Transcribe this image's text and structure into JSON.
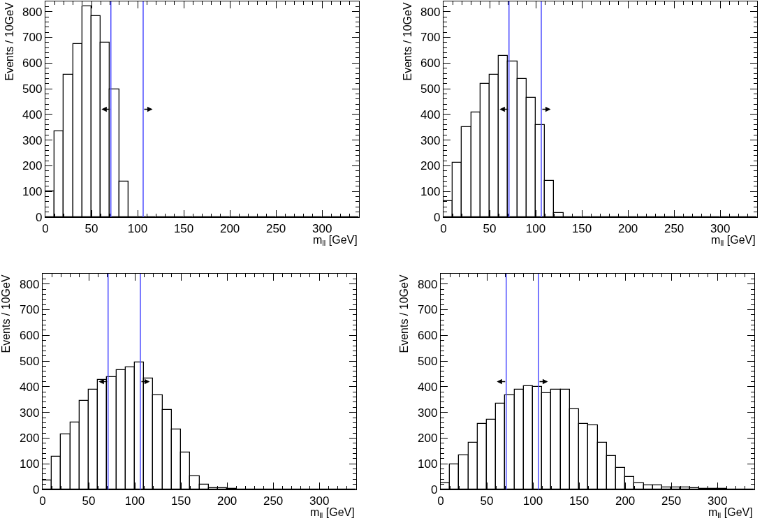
{
  "chart_data": [
    {
      "type": "histogram",
      "xlabel": "m$_{ll}$ [GeV]",
      "ylabel": "Events / 10GeV",
      "color": "#000000",
      "bins": [
        0,
        10,
        20,
        30,
        40,
        50,
        60,
        70,
        80,
        90,
        100,
        110,
        120,
        130,
        140,
        150,
        160,
        170,
        180,
        190,
        200,
        210,
        220,
        230,
        240,
        250,
        260,
        270,
        280,
        290,
        300,
        310,
        320,
        330,
        340
      ],
      "values": [
        100,
        335,
        555,
        675,
        820,
        783,
        680,
        497,
        140,
        0,
        0,
        0,
        0,
        0,
        0,
        0,
        0,
        0,
        0,
        0,
        0,
        0,
        0,
        0,
        0,
        0,
        0,
        0,
        0,
        0,
        0,
        0,
        0,
        0
      ],
      "xlim": [
        0,
        340
      ],
      "ylim": [
        0,
        840
      ],
      "xticks": [
        0,
        50,
        100,
        150,
        200,
        250,
        300
      ],
      "yticks": [
        0,
        100,
        200,
        300,
        400,
        500,
        600,
        700,
        800
      ],
      "ref_lines": [
        {
          "axis": "x",
          "value": 71,
          "color": "#4d4dff"
        },
        {
          "axis": "x",
          "value": 106,
          "color": "#4d4dff"
        }
      ]
    },
    {
      "type": "histogram",
      "xlabel": "m$_{ll}$ [GeV]",
      "ylabel": "Events / 10GeV",
      "color": "#000000",
      "bins": [
        0,
        10,
        20,
        30,
        40,
        50,
        60,
        70,
        80,
        90,
        100,
        110,
        120,
        130,
        140,
        150,
        160,
        170,
        180,
        190,
        200,
        210,
        220,
        230,
        240,
        250,
        260,
        270,
        280,
        290,
        300,
        310,
        320,
        330,
        340
      ],
      "values": [
        62,
        212,
        352,
        407,
        520,
        555,
        628,
        607,
        538,
        465,
        360,
        142,
        17,
        0,
        0,
        0,
        0,
        0,
        0,
        0,
        0,
        0,
        0,
        0,
        0,
        0,
        0,
        0,
        0,
        0,
        0,
        0,
        0,
        0
      ],
      "xlim": [
        0,
        340
      ],
      "ylim": [
        0,
        840
      ],
      "xticks": [
        0,
        50,
        100,
        150,
        200,
        250,
        300
      ],
      "yticks": [
        0,
        100,
        200,
        300,
        400,
        500,
        600,
        700,
        800
      ],
      "ref_lines": [
        {
          "axis": "x",
          "value": 71,
          "color": "#4d4dff"
        },
        {
          "axis": "x",
          "value": 106,
          "color": "#4d4dff"
        }
      ]
    },
    {
      "type": "histogram",
      "xlabel": "m$_{ll}$ [GeV]",
      "ylabel": "Events / 10GeV",
      "color": "#000000",
      "bins": [
        0,
        10,
        20,
        30,
        40,
        50,
        60,
        70,
        80,
        90,
        100,
        110,
        120,
        130,
        140,
        150,
        160,
        170,
        180,
        190,
        200,
        210,
        220,
        230,
        240,
        250,
        260,
        270,
        280,
        290,
        300,
        310,
        320,
        330,
        340
      ],
      "values": [
        36,
        128,
        214,
        262,
        345,
        390,
        428,
        438,
        464,
        476,
        495,
        432,
        368,
        310,
        235,
        145,
        51,
        20,
        6,
        6,
        3,
        1,
        1,
        0,
        0,
        0,
        0,
        0,
        0,
        0,
        0,
        0,
        0,
        0
      ],
      "xlim": [
        0,
        340
      ],
      "ylim": [
        0,
        840
      ],
      "xticks": [
        0,
        50,
        100,
        150,
        200,
        250,
        300
      ],
      "yticks": [
        0,
        100,
        200,
        300,
        400,
        500,
        600,
        700,
        800
      ],
      "ref_lines": [
        {
          "axis": "x",
          "value": 71,
          "color": "#4d4dff"
        },
        {
          "axis": "x",
          "value": 106,
          "color": "#4d4dff"
        }
      ]
    },
    {
      "type": "histogram",
      "xlabel": "m$_{ll}$ [GeV]",
      "ylabel": "Events / 10GeV",
      "color": "#000000",
      "bins": [
        0,
        10,
        20,
        30,
        40,
        50,
        60,
        70,
        80,
        90,
        100,
        110,
        120,
        130,
        140,
        150,
        160,
        170,
        180,
        190,
        200,
        210,
        220,
        230,
        240,
        250,
        260,
        270,
        280,
        290,
        300,
        310,
        320,
        330,
        340
      ],
      "values": [
        25,
        98,
        133,
        183,
        256,
        272,
        334,
        366,
        389,
        403,
        400,
        376,
        388,
        388,
        313,
        255,
        249,
        183,
        130,
        85,
        48,
        25,
        15,
        15,
        8,
        8,
        8,
        6,
        4,
        3,
        2,
        1,
        1,
        0
      ],
      "xlim": [
        0,
        340
      ],
      "ylim": [
        0,
        840
      ],
      "xticks": [
        0,
        50,
        100,
        150,
        200,
        250,
        300
      ],
      "yticks": [
        0,
        100,
        200,
        300,
        400,
        500,
        600,
        700,
        800
      ],
      "ref_lines": [
        {
          "axis": "x",
          "value": 71,
          "color": "#4d4dff"
        },
        {
          "axis": "x",
          "value": 106,
          "color": "#4d4dff"
        }
      ]
    }
  ]
}
